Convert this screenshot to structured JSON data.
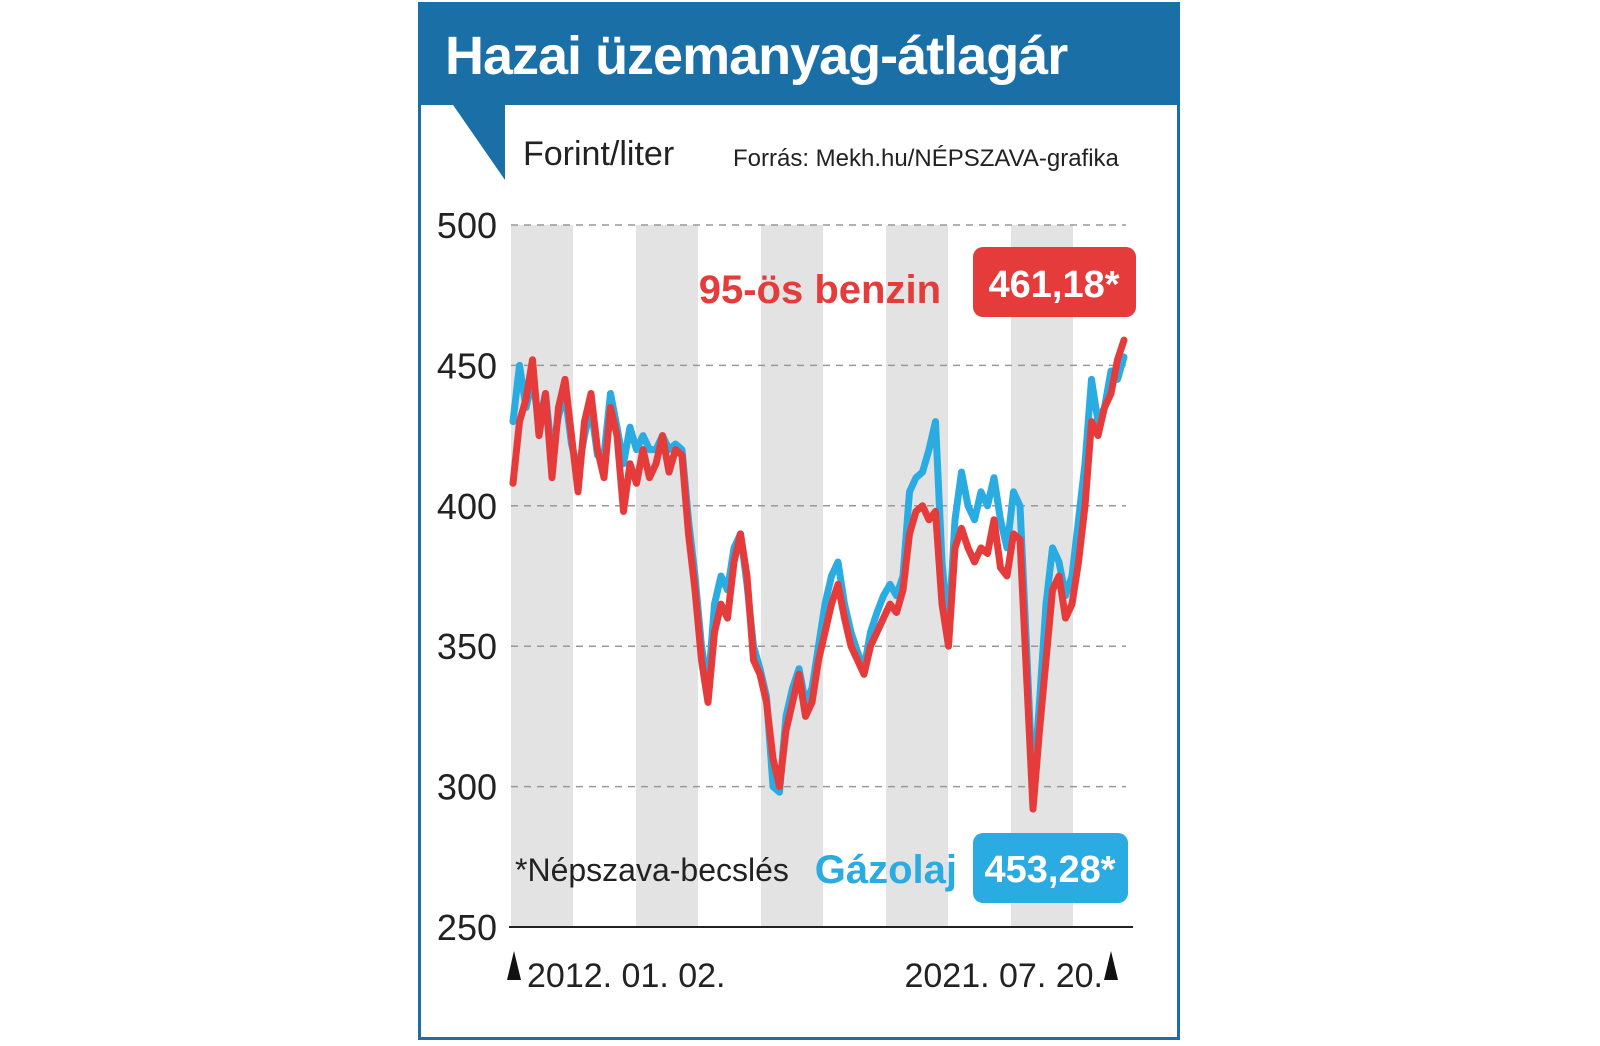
{
  "chart_data": {
    "type": "line",
    "title": "Hazai üzemanyag-átlagár",
    "ylabel": "Forint/liter",
    "source": "Forrás: Mekh.hu/NÉPSZAVA-grafika",
    "ylim": [
      250,
      500
    ],
    "yticks": [
      "500",
      "450",
      "400",
      "350",
      "300",
      "250"
    ],
    "x_start_label": "2012. 01. 02.",
    "x_end_label": "2021. 07. 20.",
    "note": "*Népszava-becslés",
    "grid": "horizontal dashed",
    "series": [
      {
        "name": "95-ös benzin",
        "final_label": "461,18*",
        "color": "#e63b3b",
        "values": [
          408,
          430,
          438,
          452,
          425,
          440,
          410,
          435,
          445,
          425,
          405,
          430,
          440,
          420,
          410,
          435,
          425,
          398,
          415,
          408,
          420,
          410,
          415,
          425,
          412,
          420,
          418,
          390,
          370,
          345,
          330,
          355,
          365,
          360,
          380,
          390,
          375,
          345,
          340,
          330,
          310,
          300,
          320,
          330,
          340,
          325,
          330,
          345,
          355,
          365,
          372,
          360,
          350,
          345,
          340,
          350,
          355,
          360,
          365,
          362,
          370,
          390,
          398,
          400,
          395,
          398,
          365,
          350,
          385,
          392,
          385,
          380,
          385,
          383,
          395,
          378,
          375,
          390,
          388,
          340,
          292,
          320,
          345,
          370,
          375,
          360,
          365,
          380,
          400,
          430,
          425,
          435,
          440,
          452,
          459
        ]
      },
      {
        "name": "Gázolaj",
        "final_label": "453,28*",
        "color": "#2aace2",
        "values": [
          430,
          450,
          435,
          445,
          430,
          440,
          418,
          432,
          440,
          422,
          412,
          425,
          435,
          418,
          418,
          440,
          428,
          415,
          428,
          420,
          425,
          420,
          420,
          425,
          420,
          422,
          420,
          395,
          375,
          350,
          335,
          365,
          375,
          370,
          385,
          390,
          372,
          350,
          342,
          332,
          300,
          298,
          325,
          335,
          342,
          330,
          335,
          350,
          365,
          375,
          380,
          365,
          355,
          348,
          342,
          355,
          362,
          368,
          372,
          368,
          375,
          405,
          410,
          412,
          420,
          430,
          380,
          355,
          395,
          412,
          400,
          395,
          405,
          400,
          410,
          395,
          385,
          405,
          400,
          350,
          298,
          330,
          365,
          385,
          380,
          368,
          375,
          395,
          415,
          445,
          430,
          435,
          448,
          445,
          453
        ]
      }
    ]
  }
}
